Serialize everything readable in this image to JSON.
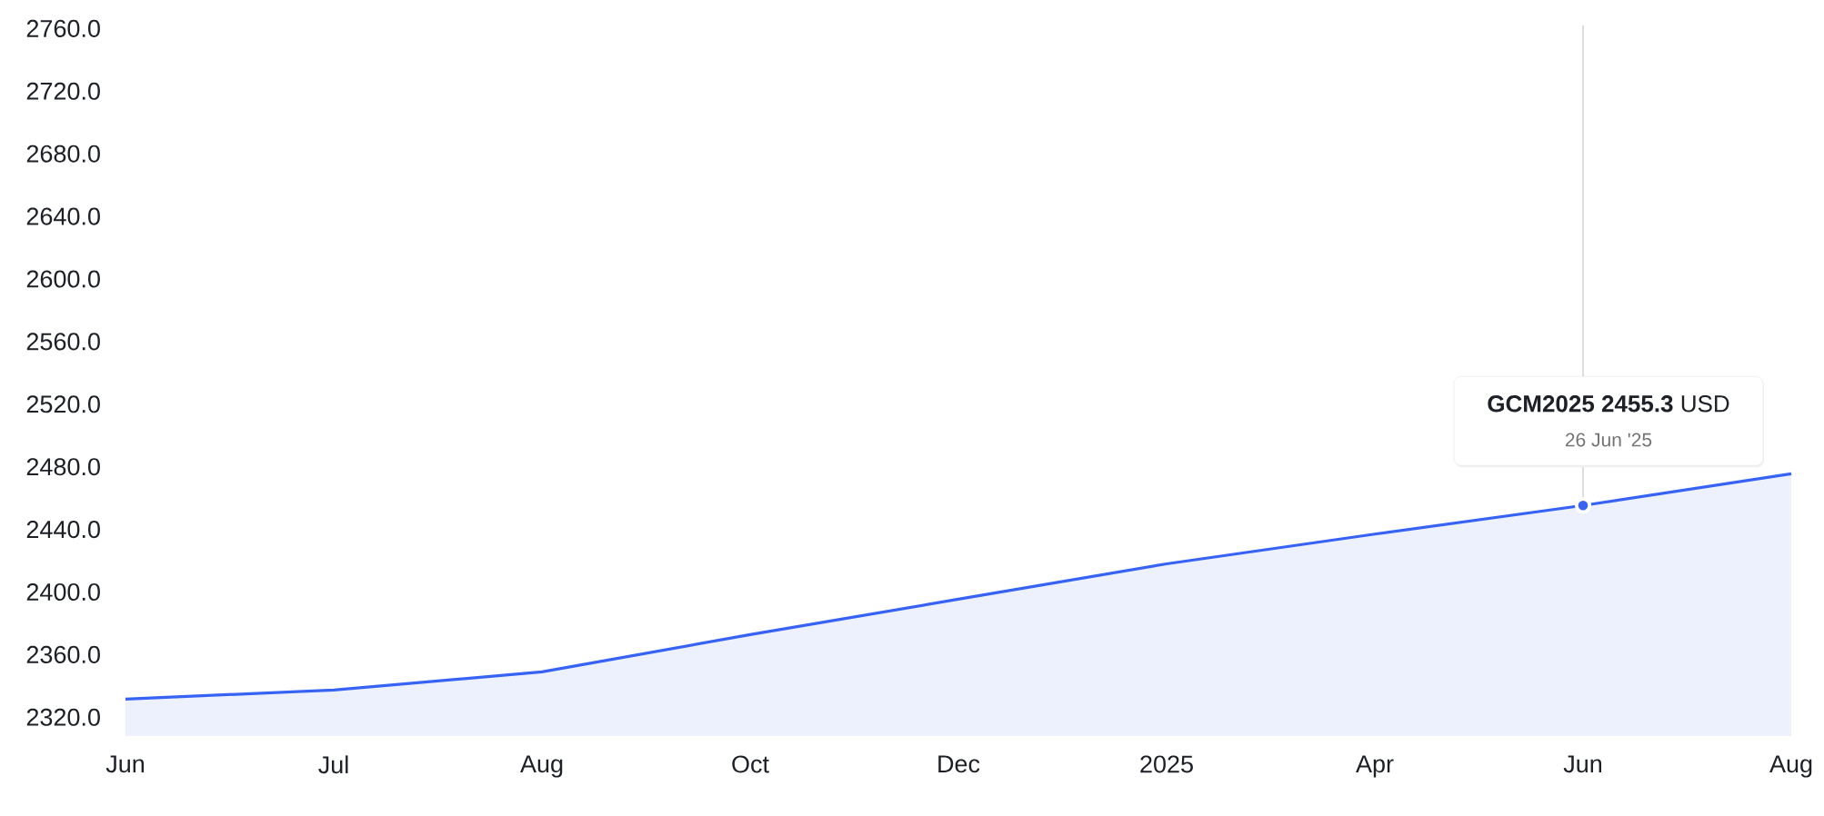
{
  "chart_data": {
    "type": "area",
    "categories": [
      "Jun",
      "Jul",
      "Aug",
      "Oct",
      "Dec",
      "2025",
      "Apr",
      "Jun",
      "Aug"
    ],
    "series": [
      {
        "color": "#3763f4",
        "values": [
          2331.6,
          2337.4,
          2349.0,
          2372.8,
          2395.4,
          2418.0,
          2437.0,
          2455.3,
          2475.6
        ]
      },
      {
        "type": "scatter",
        "color": "#3763f4",
        "values": [
          null,
          null,
          null,
          null,
          null,
          null,
          null,
          2455.3,
          null
        ]
      }
    ],
    "ylim": [
      2308,
      2762
    ],
    "yticks": [
      {
        "value": 2320,
        "label": "2320.0"
      },
      {
        "value": 2360,
        "label": "2360.0"
      },
      {
        "value": 2400,
        "label": "2400.0"
      },
      {
        "value": 2440,
        "label": "2440.0"
      },
      {
        "value": 2480,
        "label": "2480.0"
      },
      {
        "value": 2520,
        "label": "2520.0"
      },
      {
        "value": 2560,
        "label": "2560.0"
      },
      {
        "value": 2600,
        "label": "2600.0"
      },
      {
        "value": 2640,
        "label": "2640.0"
      },
      {
        "value": 2680,
        "label": "2680.0"
      },
      {
        "value": 2720,
        "label": "2720.0"
      },
      {
        "value": 2760,
        "label": "2760.0"
      }
    ],
    "annotations": [
      "**GCM2025 2455.3** USD",
      "26 Jun '25"
    ]
  }
}
